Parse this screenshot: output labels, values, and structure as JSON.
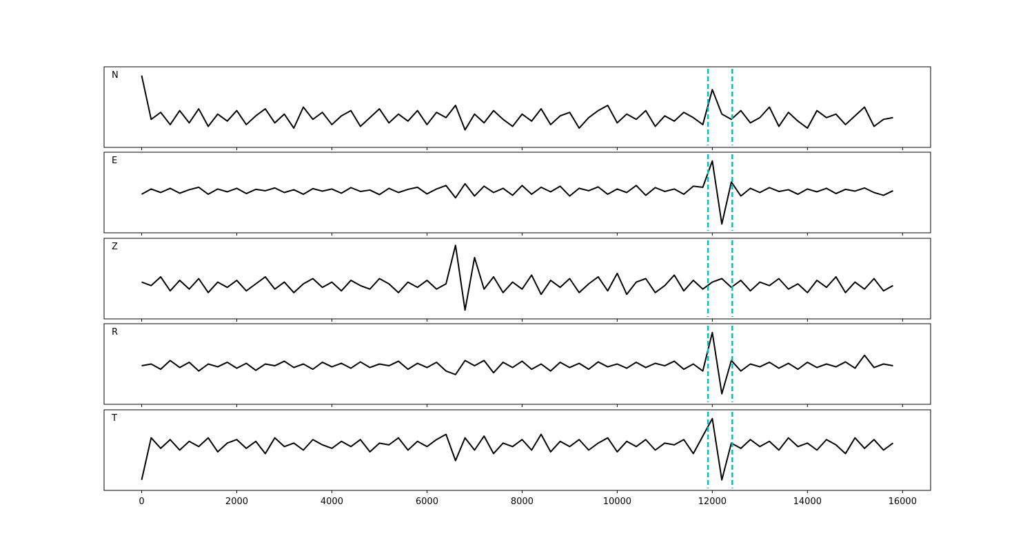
{
  "chart_data": {
    "type": "line",
    "layout": "stacked",
    "x": [
      0,
      200,
      400,
      600,
      800,
      1000,
      1200,
      1400,
      1600,
      1800,
      2000,
      2200,
      2400,
      2600,
      2800,
      3000,
      3200,
      3400,
      3600,
      3800,
      4000,
      4200,
      4400,
      4600,
      4800,
      5000,
      5200,
      5400,
      5600,
      5800,
      6000,
      6200,
      6400,
      6600,
      6800,
      7000,
      7200,
      7400,
      7600,
      7800,
      8000,
      8200,
      8400,
      8600,
      8800,
      9000,
      9200,
      9400,
      9600,
      9800,
      10000,
      10200,
      10400,
      10600,
      10800,
      11000,
      11200,
      11400,
      11600,
      11800,
      12000,
      12200,
      12400,
      12600,
      12800,
      13000,
      13200,
      13400,
      13600,
      13800,
      14000,
      14200,
      14400,
      14600,
      14800,
      15000,
      15200,
      15400,
      15600,
      15800
    ],
    "xlim": [
      -790,
      16590
    ],
    "xticks": [
      0,
      2000,
      4000,
      6000,
      8000,
      10000,
      12000,
      14000,
      16000
    ],
    "vlines": [
      11910,
      12420
    ],
    "vline_color": "#00bfbf",
    "series": [
      {
        "name": "N",
        "color": "#000000",
        "ylim": [
          -1.15,
          1.15
        ],
        "values": [
          0.9,
          -0.35,
          -0.15,
          -0.5,
          -0.1,
          -0.45,
          -0.05,
          -0.55,
          -0.2,
          -0.4,
          -0.1,
          -0.5,
          -0.25,
          -0.05,
          -0.45,
          -0.2,
          -0.6,
          0.0,
          -0.35,
          -0.15,
          -0.5,
          -0.25,
          -0.1,
          -0.55,
          -0.3,
          -0.05,
          -0.45,
          -0.2,
          -0.4,
          -0.1,
          -0.5,
          -0.15,
          -0.3,
          0.05,
          -0.65,
          -0.2,
          -0.45,
          -0.1,
          -0.35,
          -0.55,
          -0.2,
          -0.4,
          -0.05,
          -0.5,
          -0.25,
          -0.15,
          -0.6,
          -0.3,
          -0.1,
          0.05,
          -0.45,
          -0.2,
          -0.35,
          -0.1,
          -0.55,
          -0.25,
          -0.4,
          -0.15,
          -0.3,
          -0.5,
          0.5,
          -0.2,
          -0.35,
          -0.1,
          -0.45,
          -0.3,
          0.0,
          -0.55,
          -0.15,
          -0.4,
          -0.6,
          -0.1,
          -0.3,
          -0.2,
          -0.5,
          -0.25,
          0.0,
          -0.55,
          -0.35,
          -0.3
        ]
      },
      {
        "name": "E",
        "color": "#000000",
        "ylim": [
          -1.15,
          1.15
        ],
        "values": [
          -0.05,
          0.1,
          0.0,
          0.12,
          -0.02,
          0.08,
          0.15,
          -0.05,
          0.1,
          0.02,
          0.12,
          -0.03,
          0.09,
          0.05,
          0.13,
          0.0,
          0.08,
          -0.05,
          0.11,
          0.04,
          0.1,
          -0.02,
          0.14,
          0.03,
          0.07,
          -0.06,
          0.12,
          0.0,
          0.09,
          0.15,
          -0.04,
          0.1,
          0.2,
          -0.15,
          0.25,
          -0.1,
          0.18,
          0.0,
          0.12,
          -0.08,
          0.2,
          -0.05,
          0.15,
          0.02,
          0.18,
          -0.1,
          0.12,
          0.05,
          0.16,
          -0.05,
          0.1,
          0.0,
          0.2,
          -0.08,
          0.14,
          0.03,
          0.1,
          -0.05,
          0.18,
          0.15,
          0.9,
          -0.9,
          0.3,
          -0.1,
          0.12,
          0.0,
          0.14,
          0.03,
          0.08,
          -0.05,
          0.1,
          0.02,
          0.12,
          -0.03,
          0.09,
          0.04,
          0.13,
          0.0,
          -0.08,
          0.05
        ]
      },
      {
        "name": "Z",
        "color": "#000000",
        "ylim": [
          -1.15,
          1.15
        ],
        "values": [
          -0.1,
          -0.2,
          0.05,
          -0.35,
          -0.05,
          -0.3,
          0.0,
          -0.4,
          -0.1,
          -0.25,
          -0.05,
          -0.35,
          -0.15,
          0.05,
          -0.3,
          -0.1,
          -0.4,
          -0.15,
          0.0,
          -0.25,
          -0.1,
          -0.35,
          -0.05,
          -0.2,
          -0.3,
          0.0,
          -0.15,
          -0.4,
          -0.1,
          -0.25,
          -0.05,
          -0.3,
          -0.15,
          0.95,
          -0.9,
          0.6,
          -0.3,
          0.05,
          -0.4,
          -0.1,
          -0.3,
          0.1,
          -0.45,
          -0.05,
          -0.25,
          0.0,
          -0.4,
          -0.15,
          0.05,
          -0.35,
          0.15,
          -0.45,
          -0.1,
          0.0,
          -0.4,
          -0.2,
          0.1,
          -0.35,
          -0.05,
          -0.3,
          -0.1,
          0.0,
          -0.25,
          -0.05,
          -0.35,
          -0.1,
          -0.2,
          0.0,
          -0.3,
          -0.15,
          -0.4,
          -0.05,
          -0.25,
          0.05,
          -0.4,
          -0.1,
          -0.3,
          0.0,
          -0.35,
          -0.2
        ]
      },
      {
        "name": "R",
        "color": "#000000",
        "ylim": [
          -1.15,
          1.15
        ],
        "values": [
          -0.05,
          0.0,
          -0.15,
          0.1,
          -0.1,
          0.05,
          -0.2,
          0.0,
          -0.08,
          0.05,
          -0.12,
          0.02,
          -0.18,
          0.0,
          -0.05,
          0.08,
          -0.1,
          0.0,
          -0.15,
          0.05,
          -0.08,
          0.02,
          -0.12,
          0.06,
          -0.1,
          0.0,
          -0.05,
          0.08,
          -0.15,
          0.02,
          -0.1,
          0.05,
          -0.2,
          -0.3,
          0.1,
          -0.05,
          0.1,
          -0.25,
          0.05,
          -0.1,
          0.08,
          -0.15,
          0.0,
          -0.2,
          0.05,
          -0.1,
          0.02,
          -0.15,
          0.06,
          -0.08,
          0.0,
          -0.12,
          0.05,
          -0.1,
          0.02,
          -0.05,
          0.08,
          -0.15,
          0.0,
          -0.2,
          0.9,
          -0.85,
          0.1,
          -0.2,
          0.0,
          -0.08,
          0.05,
          -0.12,
          0.02,
          -0.15,
          0.05,
          -0.1,
          0.0,
          -0.08,
          0.06,
          -0.12,
          0.25,
          -0.1,
          0.0,
          -0.05
        ]
      },
      {
        "name": "T",
        "color": "#000000",
        "ylim": [
          -1.15,
          1.15
        ],
        "values": [
          -0.85,
          0.35,
          0.05,
          0.3,
          0.0,
          0.25,
          0.1,
          0.35,
          -0.05,
          0.2,
          0.3,
          0.05,
          0.25,
          -0.1,
          0.35,
          0.1,
          0.2,
          0.0,
          0.3,
          0.15,
          0.05,
          0.25,
          0.1,
          0.3,
          -0.05,
          0.2,
          0.15,
          0.35,
          0.0,
          0.25,
          0.1,
          0.3,
          0.45,
          -0.3,
          0.35,
          0.0,
          0.4,
          -0.1,
          0.2,
          0.1,
          0.3,
          0.0,
          0.45,
          -0.05,
          0.25,
          0.1,
          0.3,
          0.0,
          0.2,
          0.35,
          -0.05,
          0.25,
          0.1,
          0.3,
          0.0,
          0.2,
          0.15,
          0.3,
          -0.1,
          0.4,
          0.9,
          -0.85,
          0.2,
          0.05,
          0.3,
          0.1,
          0.25,
          0.0,
          0.35,
          0.1,
          0.2,
          0.0,
          0.3,
          0.15,
          -0.1,
          0.35,
          0.05,
          0.3,
          0.0,
          0.2
        ]
      }
    ]
  }
}
